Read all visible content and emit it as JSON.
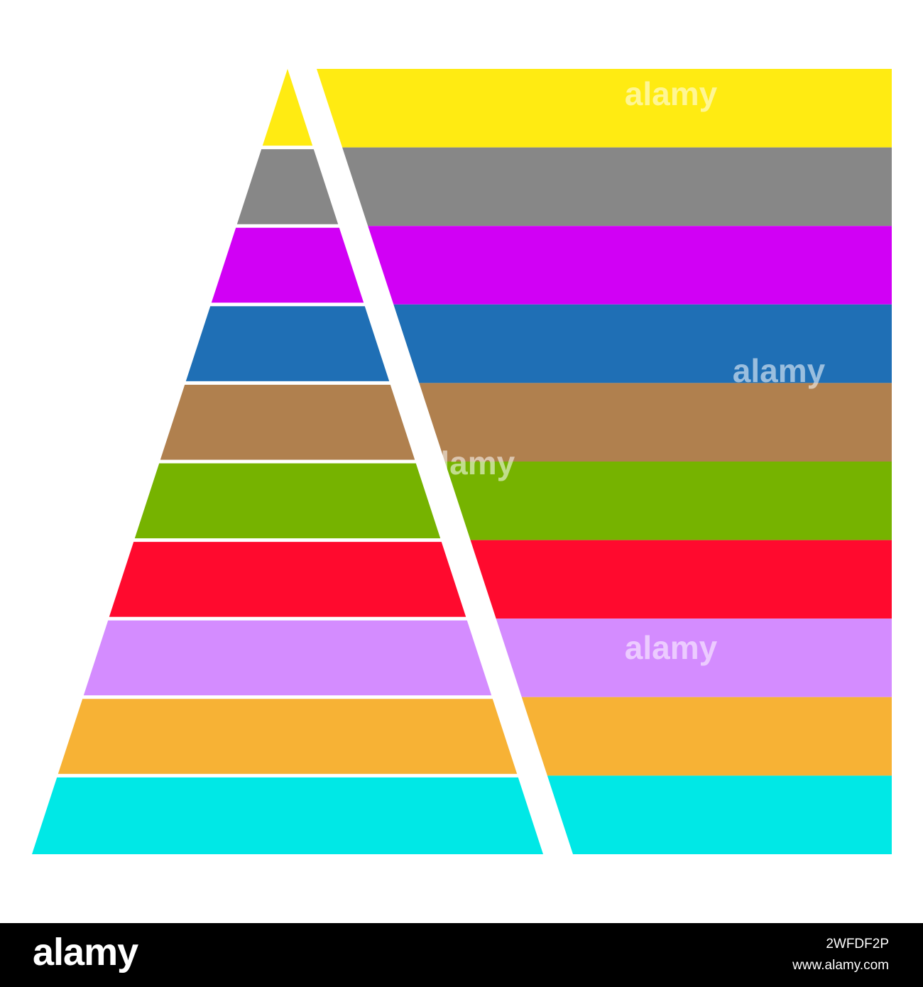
{
  "diagram": {
    "layers": [
      {
        "color": "#FFEB12"
      },
      {
        "color": "#878787"
      },
      {
        "color": "#D100F5"
      },
      {
        "color": "#1F6FB5"
      },
      {
        "color": "#B0804E"
      },
      {
        "color": "#76B300"
      },
      {
        "color": "#FF0A2E"
      },
      {
        "color": "#D48CFF"
      },
      {
        "color": "#F7B235"
      },
      {
        "color": "#00E8E6"
      }
    ],
    "background_color": "#FFFFFF",
    "divider_color": "#FFFFFF"
  },
  "watermark": {
    "brand": "alamy",
    "image_id": "2WFDF2P",
    "url": "www.alamy.com"
  },
  "colors": {
    "footer_background": "#000000",
    "footer_text": "#FFFFFF"
  }
}
